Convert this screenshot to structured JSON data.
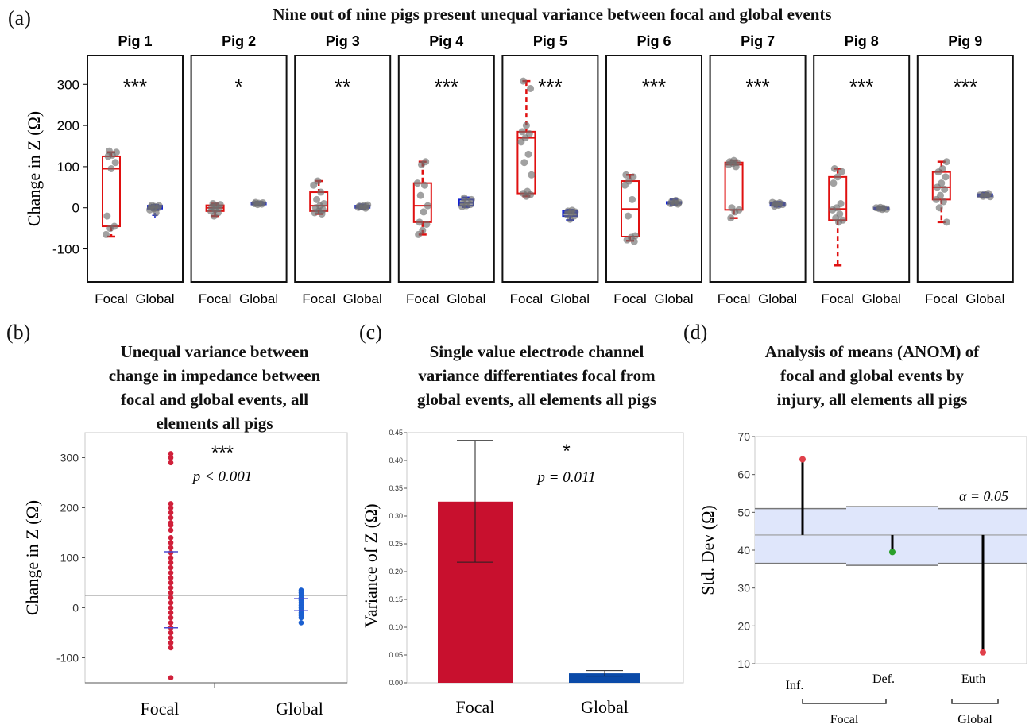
{
  "panel_labels": [
    "(a)",
    "(b)",
    "(c)",
    "(d)"
  ],
  "titles": {
    "a": "Nine out of nine pigs present unequal variance between focal and global events",
    "b": [
      "Unequal variance between",
      "change in impedance between",
      "focal and global events, all",
      "elements all pigs"
    ],
    "c": [
      "Single value electrode channel",
      "variance differentiates focal from",
      "global events, all elements all pigs"
    ],
    "d": [
      "Analysis of means (ANOM) of",
      "focal and global events by",
      "injury, all elements all pigs"
    ]
  },
  "colors": {
    "focal": "#e01010",
    "global": "#1020d0",
    "bar_focal": "#c8102e",
    "bar_global": "#0a4aa8",
    "dot_b_focal": "#d0203a",
    "dot_b_global": "#1a5fd0",
    "band": "#dfe6fb"
  },
  "chart_data": [
    {
      "type": "box",
      "panel": "a",
      "ylabel": "Change in Z (Ω)",
      "ylim": [
        -180,
        370
      ],
      "yticks": [
        -100,
        0,
        100,
        200,
        300
      ],
      "categories": [
        "Focal",
        "Global"
      ],
      "pigs": [
        {
          "name": "Pig 1",
          "sig": "***",
          "focal": {
            "whisker_low": -70,
            "q1": -45,
            "median": 95,
            "q3": 125,
            "whisker_high": 135,
            "outliers": [],
            "points": [
              -65,
              -50,
              -45,
              -20,
              95,
              110,
              125,
              128,
              135,
              138
            ]
          },
          "global": {
            "whisker_low": -5,
            "q1": -2,
            "median": 2,
            "q3": 5,
            "whisker_high": 7,
            "outliers": [
              -18
            ],
            "points": [
              -5,
              -2,
              0,
              2,
              3,
              5,
              6,
              -12
            ]
          }
        },
        {
          "name": "Pig 2",
          "sig": "*",
          "focal": {
            "whisker_low": -20,
            "q1": -8,
            "median": 0,
            "q3": 6,
            "whisker_high": 10,
            "outliers": [],
            "points": [
              -20,
              -12,
              -8,
              -4,
              0,
              2,
              5,
              8,
              10
            ]
          },
          "global": {
            "whisker_low": 7,
            "q1": 9,
            "median": 11,
            "q3": 12,
            "whisker_high": 14,
            "outliers": [],
            "points": [
              8,
              9,
              10,
              11,
              12,
              13
            ]
          }
        },
        {
          "name": "Pig 3",
          "sig": "**",
          "focal": {
            "whisker_low": -15,
            "q1": -8,
            "median": 5,
            "q3": 38,
            "whisker_high": 65,
            "outliers": [],
            "points": [
              -15,
              -12,
              -8,
              -5,
              0,
              5,
              10,
              20,
              38,
              55,
              65
            ]
          },
          "global": {
            "whisker_low": -2,
            "q1": 0,
            "median": 3,
            "q3": 5,
            "whisker_high": 8,
            "outliers": [],
            "points": [
              -1,
              1,
              2,
              3,
              4,
              5,
              7
            ]
          }
        },
        {
          "name": "Pig 4",
          "sig": "***",
          "focal": {
            "whisker_low": -65,
            "q1": -35,
            "median": 5,
            "q3": 60,
            "whisker_high": 112,
            "outliers": [],
            "points": [
              -65,
              -55,
              -40,
              -35,
              -10,
              5,
              30,
              55,
              60,
              105,
              112
            ]
          },
          "global": {
            "whisker_low": 2,
            "q1": 5,
            "median": 12,
            "q3": 20,
            "whisker_high": 25,
            "outliers": [],
            "points": [
              3,
              5,
              8,
              12,
              16,
              20,
              24
            ]
          }
        },
        {
          "name": "Pig 5",
          "sig": "***",
          "focal": {
            "whisker_low": 28,
            "q1": 35,
            "median": 170,
            "q3": 185,
            "whisker_high": 308,
            "outliers": [],
            "points": [
              28,
              32,
              35,
              40,
              80,
              110,
              130,
              160,
              170,
              180,
              185,
              200,
              290,
              308
            ]
          },
          "global": {
            "whisker_low": -30,
            "q1": -20,
            "median": -12,
            "q3": -8,
            "whisker_high": -5,
            "outliers": [],
            "points": [
              -28,
              -20,
              -16,
              -12,
              -10,
              -8,
              -6
            ]
          }
        },
        {
          "name": "Pig 6",
          "sig": "***",
          "focal": {
            "whisker_low": -80,
            "q1": -70,
            "median": -3,
            "q3": 65,
            "whisker_high": 80,
            "outliers": [],
            "points": [
              -82,
              -78,
              -72,
              -68,
              -20,
              20,
              55,
              65,
              75,
              80
            ]
          },
          "global": {
            "whisker_low": 8,
            "q1": 10,
            "median": 12,
            "q3": 14,
            "whisker_high": 20,
            "outliers": [],
            "points": [
              9,
              10,
              12,
              13,
              15,
              18
            ]
          }
        },
        {
          "name": "Pig 7",
          "sig": "***",
          "focal": {
            "whisker_low": -25,
            "q1": -5,
            "median": 105,
            "q3": 110,
            "whisker_high": 115,
            "outliers": [],
            "points": [
              -25,
              -10,
              -5,
              0,
              100,
              105,
              108,
              110,
              112,
              115
            ]
          },
          "global": {
            "whisker_low": 3,
            "q1": 5,
            "median": 8,
            "q3": 11,
            "whisker_high": 14,
            "outliers": [],
            "points": [
              4,
              6,
              8,
              10,
              12,
              13
            ]
          }
        },
        {
          "name": "Pig 8",
          "sig": "***",
          "focal": {
            "whisker_low": -140,
            "q1": -30,
            "median": -3,
            "q3": 75,
            "whisker_high": 95,
            "outliers": [],
            "points": [
              -35,
              -30,
              -25,
              -15,
              -5,
              0,
              10,
              60,
              75,
              88,
              95
            ]
          },
          "global": {
            "whisker_low": -5,
            "q1": -3,
            "median": -1,
            "q3": 0,
            "whisker_high": 2,
            "outliers": [],
            "points": [
              -4,
              -3,
              -2,
              -1,
              0,
              1
            ]
          }
        },
        {
          "name": "Pig 9",
          "sig": "***",
          "focal": {
            "whisker_low": -35,
            "q1": 20,
            "median": 50,
            "q3": 87,
            "whisker_high": 112,
            "outliers": [],
            "points": [
              -35,
              0,
              15,
              20,
              30,
              45,
              50,
              60,
              75,
              87,
              95,
              112
            ]
          },
          "global": {
            "whisker_low": 26,
            "q1": 28,
            "median": 30,
            "q3": 33,
            "whisker_high": 36,
            "outliers": [],
            "points": [
              27,
              28,
              30,
              31,
              33,
              35
            ]
          }
        }
      ]
    },
    {
      "type": "scatter",
      "panel": "b",
      "ylabel": "Change in Z (Ω)",
      "categories": [
        "Focal",
        "Global"
      ],
      "ylim": [
        -150,
        350
      ],
      "yticks": [
        -100,
        0,
        100,
        200,
        300
      ],
      "grand_mean": 25,
      "sig": "***",
      "annotation": "p < 0.001",
      "focal_points": [
        308,
        300,
        290,
        208,
        200,
        190,
        180,
        170,
        165,
        155,
        140,
        130,
        120,
        110,
        100,
        90,
        80,
        70,
        60,
        50,
        40,
        30,
        20,
        10,
        0,
        -10,
        -20,
        -30,
        -40,
        -50,
        -60,
        -70,
        -80,
        -140
      ],
      "focal_std_marks": [
        112,
        -40
      ],
      "global_points": [
        35,
        30,
        25,
        20,
        15,
        10,
        5,
        0,
        -5,
        -10,
        -15,
        -20,
        -30
      ],
      "global_std_marks": [
        18,
        -6
      ]
    },
    {
      "type": "bar",
      "panel": "c",
      "ylabel": "Variance of Z (Ω)",
      "categories": [
        "Focal",
        "Global"
      ],
      "values": [
        0.326,
        0.017
      ],
      "error_low": [
        0.217,
        0.012
      ],
      "error_high": [
        0.436,
        0.022
      ],
      "ylim": [
        0,
        0.45
      ],
      "yticks": [
        0.0,
        0.05,
        0.1,
        0.15,
        0.2,
        0.25,
        0.3,
        0.35,
        0.4,
        0.45
      ],
      "sig": "*",
      "annotation": "p = 0.011"
    },
    {
      "type": "anom",
      "panel": "d",
      "ylabel": "Std. Dev (Ω)",
      "ylim": [
        10,
        70
      ],
      "yticks": [
        10,
        20,
        30,
        40,
        50,
        60,
        70
      ],
      "center": 44,
      "upper_limits": [
        51,
        51.5,
        51
      ],
      "lower_limits": [
        36.5,
        36,
        36.5
      ],
      "categories": [
        "Inf.",
        "Def.",
        "Euth"
      ],
      "values": [
        64,
        39.5,
        13
      ],
      "point_colors": [
        "#e0404a",
        "#2aa02a",
        "#e0404a"
      ],
      "groups": [
        {
          "label": "Focal",
          "span": [
            "Inf.",
            "Def."
          ]
        },
        {
          "label": "Global",
          "span": [
            "Euth"
          ]
        }
      ],
      "alpha_label": "α = 0.05"
    }
  ]
}
